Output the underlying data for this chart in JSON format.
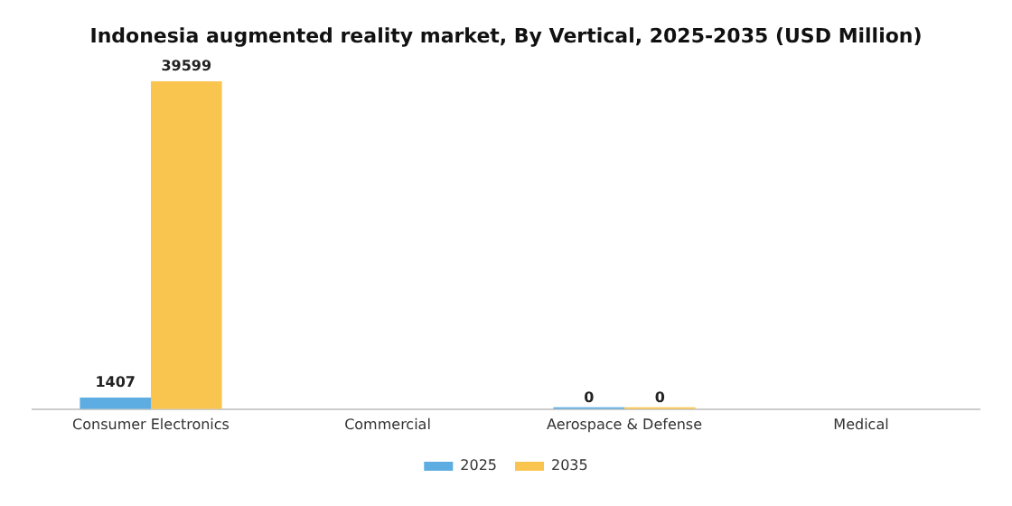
{
  "chart_data": {
    "type": "bar",
    "title": "Indonesia augmented reality market, By Vertical, 2025-2035 (USD Million)",
    "categories": [
      "Consumer Electronics",
      "Commercial",
      "Aerospace & Defense",
      "Medical"
    ],
    "series": [
      {
        "name": "2025",
        "color": "#5dade2",
        "values": [
          1407,
          null,
          0,
          null
        ]
      },
      {
        "name": "2035",
        "color": "#f9c54e",
        "values": [
          39599,
          null,
          0,
          null
        ]
      }
    ],
    "data_labels": true,
    "legend": "bottom",
    "grid": false
  }
}
